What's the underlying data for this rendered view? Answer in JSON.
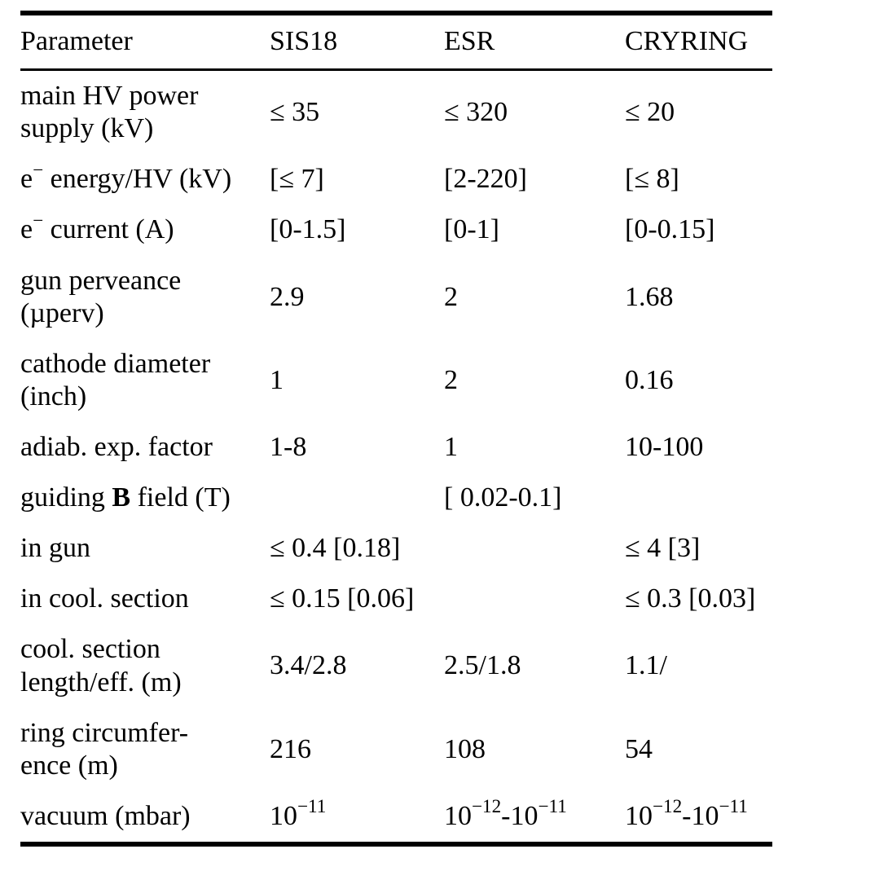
{
  "table": {
    "columns": [
      "Parameter",
      "SIS18",
      "ESR",
      "CRYRING"
    ],
    "rows": [
      {
        "param": "main HV power\nsupply (kV)",
        "sis18": "≤ 35",
        "esr": "≤ 320",
        "cryring": "≤ 20"
      },
      {
        "param": "e^{−} energy/HV (kV)",
        "sis18": "[≤ 7]",
        "esr": "[2-220]",
        "cryring": "[≤ 8]"
      },
      {
        "param": "e^{−} current (A)",
        "sis18": "[0-1.5]",
        "esr": "[0-1]",
        "cryring": "[0-0.15]"
      },
      {
        "param": "gun perveance\n(µperv)",
        "sis18": "2.9",
        "esr": "2",
        "cryring": "1.68"
      },
      {
        "param": "cathode diameter\n(inch)",
        "sis18": "1",
        "esr": "2",
        "cryring": "0.16"
      },
      {
        "param": "adiab. exp. factor",
        "sis18": "1-8",
        "esr": "1",
        "cryring": "10-100"
      },
      {
        "param": "guiding **B** field (T)",
        "sis18": "",
        "esr": "[ 0.02-0.1]",
        "cryring": ""
      },
      {
        "param": "in gun",
        "sis18": "≤ 0.4 [0.18]",
        "esr": "",
        "cryring": "≤ 4 [3]"
      },
      {
        "param": "in cool. section",
        "sis18": "≤ 0.15 [0.06]",
        "esr": "",
        "cryring": "≤ 0.3 [0.03]"
      },
      {
        "param": "cool. section\nlength/eff. (m)",
        "sis18": "3.4/2.8",
        "esr": "2.5/1.8",
        "cryring": "1.1/"
      },
      {
        "param": "ring circumfer-\nence (m)",
        "sis18": "216",
        "esr": "108",
        "cryring": "54"
      },
      {
        "param": "vacuum (mbar)",
        "sis18": "10^{−11}",
        "esr": "10^{−12}-10^{−11}",
        "cryring": "10^{−12}-10^{−11}"
      }
    ]
  }
}
